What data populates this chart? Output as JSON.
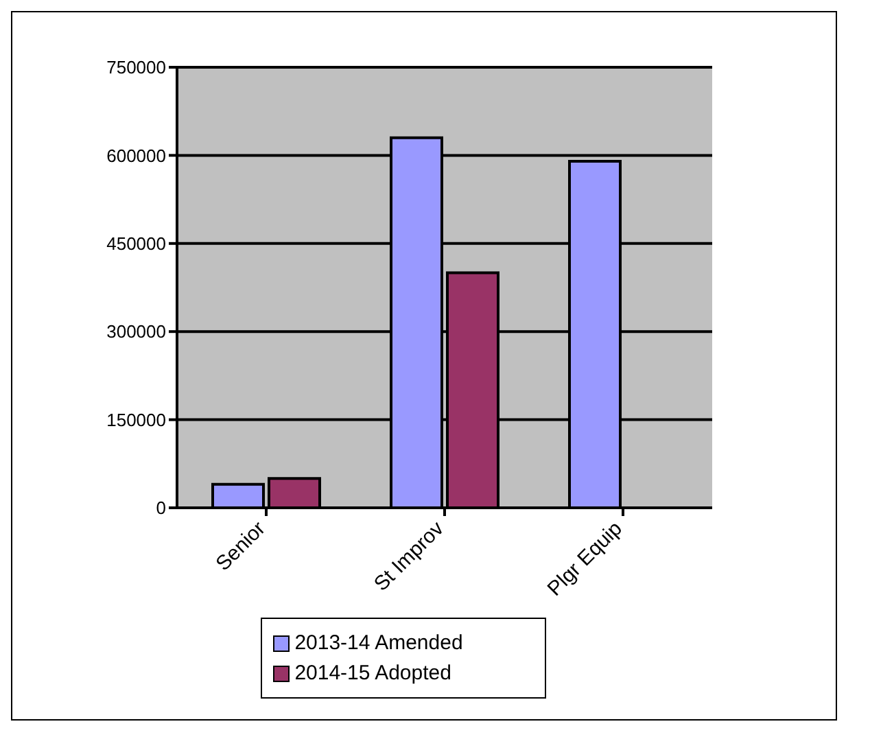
{
  "chart_data": {
    "type": "bar",
    "categories": [
      "Senior",
      "St Improv",
      "Plgr Equip"
    ],
    "series": [
      {
        "name": "2013-14 Amended",
        "color": "#9999ff",
        "values": [
          40000,
          630000,
          590000
        ]
      },
      {
        "name": "2014-15 Adopted",
        "color": "#993366",
        "values": [
          50000,
          400000,
          0
        ]
      }
    ],
    "ylim": [
      0,
      750000
    ],
    "yticks": [
      0,
      150000,
      300000,
      450000,
      600000,
      750000
    ],
    "grid": "y",
    "legend": "bottom"
  }
}
